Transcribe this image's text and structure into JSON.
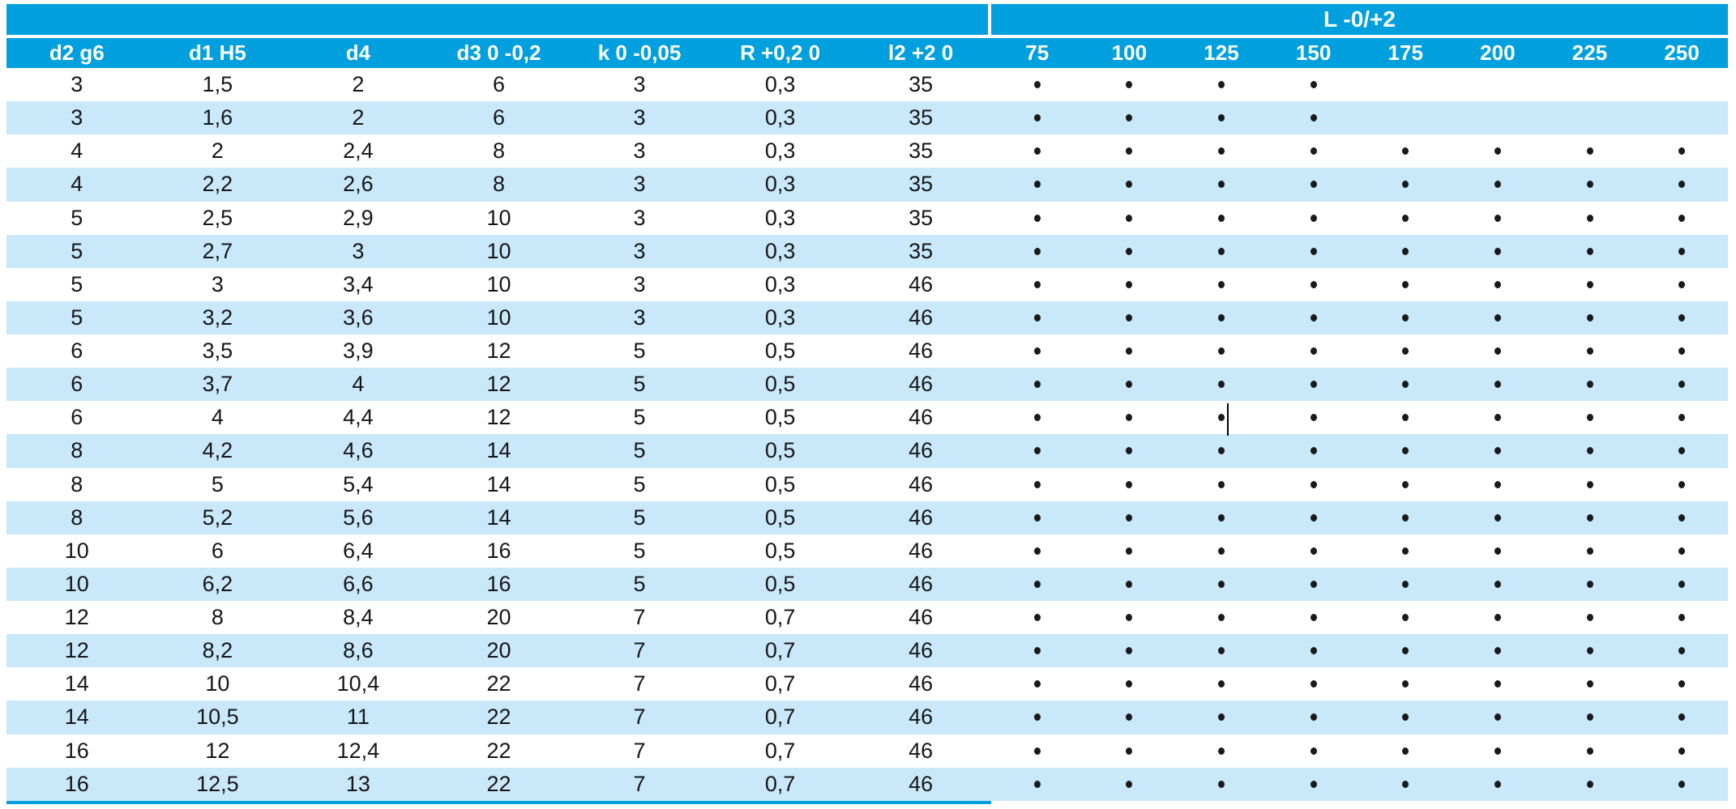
{
  "colors": {
    "header_blue": "#00A0DF",
    "row_alt_blue": "#C9E8FA",
    "body_text": "#161616",
    "header_text": "#FFFFFF",
    "dot_black": "#1A1A1A"
  },
  "table": {
    "group_header": "L -0/+2",
    "spec_columns": [
      "d2 g6",
      "d1 H5",
      "d4",
      "d3 0 -0,2",
      "k 0 -0,05",
      "R +0,2 0",
      "l2 +2 0"
    ],
    "length_columns": [
      "75",
      "100",
      "125",
      "150",
      "175",
      "200",
      "225",
      "250"
    ],
    "rows": [
      {
        "values": [
          "3",
          "1,5",
          "2",
          "6",
          "3",
          "0,3",
          "35"
        ],
        "lengths": [
          true,
          true,
          true,
          true,
          false,
          false,
          false,
          false
        ]
      },
      {
        "values": [
          "3",
          "1,6",
          "2",
          "6",
          "3",
          "0,3",
          "35"
        ],
        "lengths": [
          true,
          true,
          true,
          true,
          false,
          false,
          false,
          false
        ]
      },
      {
        "values": [
          "4",
          "2",
          "2,4",
          "8",
          "3",
          "0,3",
          "35"
        ],
        "lengths": [
          true,
          true,
          true,
          true,
          true,
          true,
          true,
          true
        ]
      },
      {
        "values": [
          "4",
          "2,2",
          "2,6",
          "8",
          "3",
          "0,3",
          "35"
        ],
        "lengths": [
          true,
          true,
          true,
          true,
          true,
          true,
          true,
          true
        ]
      },
      {
        "values": [
          "5",
          "2,5",
          "2,9",
          "10",
          "3",
          "0,3",
          "35"
        ],
        "lengths": [
          true,
          true,
          true,
          true,
          true,
          true,
          true,
          true
        ]
      },
      {
        "values": [
          "5",
          "2,7",
          "3",
          "10",
          "3",
          "0,3",
          "35"
        ],
        "lengths": [
          true,
          true,
          true,
          true,
          true,
          true,
          true,
          true
        ]
      },
      {
        "values": [
          "5",
          "3",
          "3,4",
          "10",
          "3",
          "0,3",
          "46"
        ],
        "lengths": [
          true,
          true,
          true,
          true,
          true,
          true,
          true,
          true
        ]
      },
      {
        "values": [
          "5",
          "3,2",
          "3,6",
          "10",
          "3",
          "0,3",
          "46"
        ],
        "lengths": [
          true,
          true,
          true,
          true,
          true,
          true,
          true,
          true
        ]
      },
      {
        "values": [
          "6",
          "3,5",
          "3,9",
          "12",
          "5",
          "0,5",
          "46"
        ],
        "lengths": [
          true,
          true,
          true,
          true,
          true,
          true,
          true,
          true
        ]
      },
      {
        "values": [
          "6",
          "3,7",
          "4",
          "12",
          "5",
          "0,5",
          "46"
        ],
        "lengths": [
          true,
          true,
          true,
          true,
          true,
          true,
          true,
          true
        ]
      },
      {
        "values": [
          "6",
          "4",
          "4,4",
          "12",
          "5",
          "0,5",
          "46"
        ],
        "lengths": [
          true,
          true,
          true,
          true,
          true,
          true,
          true,
          true
        ]
      },
      {
        "values": [
          "8",
          "4,2",
          "4,6",
          "14",
          "5",
          "0,5",
          "46"
        ],
        "lengths": [
          true,
          true,
          true,
          true,
          true,
          true,
          true,
          true
        ]
      },
      {
        "values": [
          "8",
          "5",
          "5,4",
          "14",
          "5",
          "0,5",
          "46"
        ],
        "lengths": [
          true,
          true,
          true,
          true,
          true,
          true,
          true,
          true
        ]
      },
      {
        "values": [
          "8",
          "5,2",
          "5,6",
          "14",
          "5",
          "0,5",
          "46"
        ],
        "lengths": [
          true,
          true,
          true,
          true,
          true,
          true,
          true,
          true
        ]
      },
      {
        "values": [
          "10",
          "6",
          "6,4",
          "16",
          "5",
          "0,5",
          "46"
        ],
        "lengths": [
          true,
          true,
          true,
          true,
          true,
          true,
          true,
          true
        ]
      },
      {
        "values": [
          "10",
          "6,2",
          "6,6",
          "16",
          "5",
          "0,5",
          "46"
        ],
        "lengths": [
          true,
          true,
          true,
          true,
          true,
          true,
          true,
          true
        ]
      },
      {
        "values": [
          "12",
          "8",
          "8,4",
          "20",
          "7",
          "0,7",
          "46"
        ],
        "lengths": [
          true,
          true,
          true,
          true,
          true,
          true,
          true,
          true
        ]
      },
      {
        "values": [
          "12",
          "8,2",
          "8,6",
          "20",
          "7",
          "0,7",
          "46"
        ],
        "lengths": [
          true,
          true,
          true,
          true,
          true,
          true,
          true,
          true
        ]
      },
      {
        "values": [
          "14",
          "10",
          "10,4",
          "22",
          "7",
          "0,7",
          "46"
        ],
        "lengths": [
          true,
          true,
          true,
          true,
          true,
          true,
          true,
          true
        ]
      },
      {
        "values": [
          "14",
          "10,5",
          "11",
          "22",
          "7",
          "0,7",
          "46"
        ],
        "lengths": [
          true,
          true,
          true,
          true,
          true,
          true,
          true,
          true
        ]
      },
      {
        "values": [
          "16",
          "12",
          "12,4",
          "22",
          "7",
          "0,7",
          "46"
        ],
        "lengths": [
          true,
          true,
          true,
          true,
          true,
          true,
          true,
          true
        ]
      },
      {
        "values": [
          "16",
          "12,5",
          "13",
          "22",
          "7",
          "0,7",
          "46"
        ],
        "lengths": [
          true,
          true,
          true,
          true,
          true,
          true,
          true,
          true
        ]
      }
    ]
  },
  "artifacts": {
    "text_cursor": {
      "present": true,
      "row_index": 10,
      "length_column": "125"
    }
  }
}
